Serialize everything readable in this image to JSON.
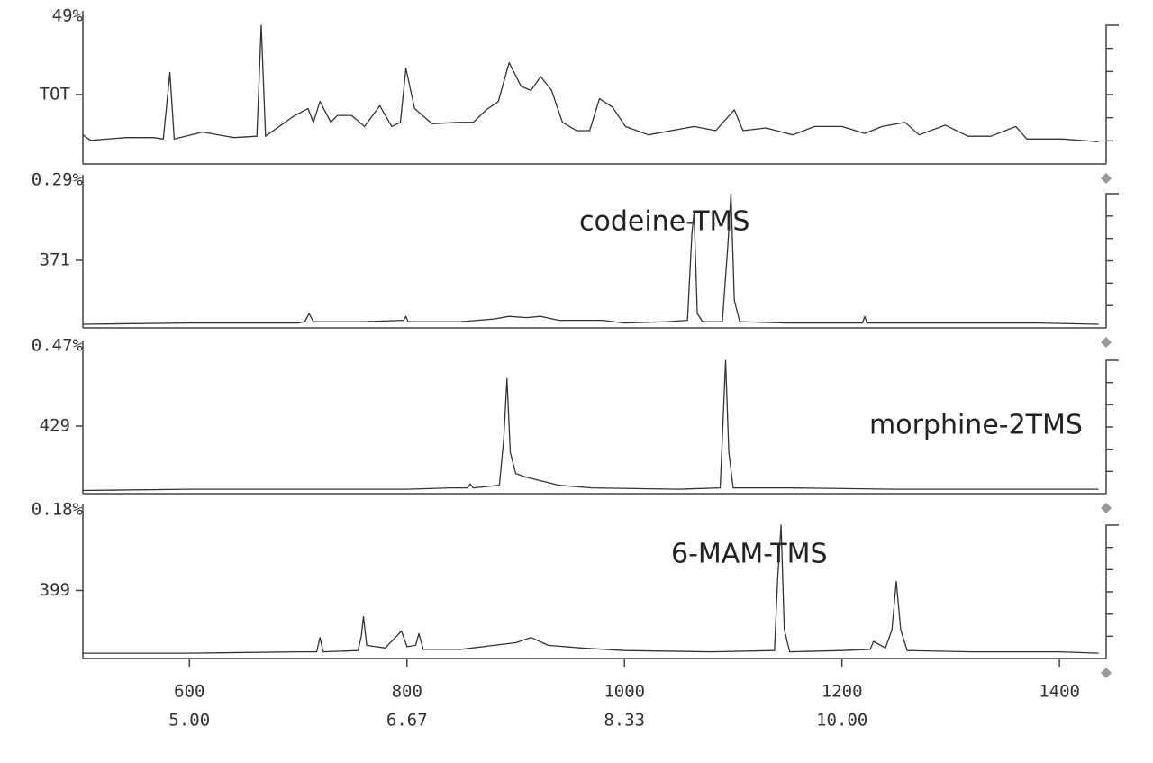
{
  "chart_data": [
    {
      "type": "line",
      "top_label": "49%",
      "y_label": "TOT",
      "color": "#333333",
      "xlim": [
        502,
        1438
      ],
      "ylim": [
        0,
        100
      ],
      "x": [
        502,
        509,
        542,
        567,
        576,
        582,
        586,
        612,
        641,
        662,
        666,
        670,
        695,
        709,
        714,
        720,
        730,
        736,
        749,
        761,
        775,
        786,
        794,
        799,
        807,
        823,
        848,
        861,
        873,
        884,
        894,
        905,
        914,
        923,
        933,
        943,
        956,
        968,
        977,
        989,
        1001,
        1022,
        1064,
        1084,
        1101,
        1109,
        1130,
        1155,
        1175,
        1200,
        1221,
        1237,
        1258,
        1271,
        1295,
        1316,
        1337,
        1360,
        1370,
        1403,
        1436
      ],
      "values": [
        21,
        17,
        19,
        19,
        18,
        66,
        18,
        23,
        19,
        20,
        100,
        20,
        34,
        40,
        30,
        45,
        30,
        35,
        35,
        27,
        42,
        27,
        30,
        69,
        40,
        29,
        30,
        30,
        39,
        45,
        73,
        56,
        53,
        63,
        53,
        30,
        24,
        24,
        47,
        41,
        27,
        21,
        27,
        24,
        39,
        24,
        26,
        21,
        27,
        27,
        22,
        27,
        30,
        21,
        28,
        20,
        20,
        27,
        18,
        18,
        16
      ]
    },
    {
      "type": "line",
      "top_label": "0.29%",
      "y_label": "371",
      "annotation": "codeine-TMS",
      "color": "#333333",
      "xlim": [
        502,
        1438
      ],
      "ylim": [
        0,
        100
      ],
      "x": [
        502,
        600,
        700,
        706,
        710,
        714,
        760,
        797,
        799,
        801,
        850,
        880,
        894,
        910,
        923,
        940,
        980,
        1000,
        1040,
        1058,
        1062,
        1064,
        1067,
        1072,
        1090,
        1095,
        1098,
        1101,
        1106,
        1150,
        1219,
        1221,
        1223,
        1300,
        1380,
        1436
      ],
      "values": [
        2,
        3,
        3,
        4,
        10,
        4,
        4,
        5,
        8,
        4,
        4,
        6,
        8,
        7,
        8,
        5,
        5,
        3,
        4,
        5,
        70,
        86,
        10,
        4,
        4,
        60,
        100,
        20,
        4,
        3,
        3,
        8,
        3,
        3,
        3,
        2
      ]
    },
    {
      "type": "line",
      "top_label": "0.47%",
      "y_label": "429",
      "annotation": "morphine-2TMS",
      "color": "#333333",
      "xlim": [
        502,
        1438
      ],
      "ylim": [
        0,
        100
      ],
      "x": [
        502,
        600,
        700,
        800,
        840,
        856,
        858,
        861,
        885,
        889,
        892,
        895,
        900,
        910,
        925,
        940,
        970,
        1050,
        1088,
        1091,
        1093,
        1096,
        1100,
        1150,
        1250,
        1350,
        1436
      ],
      "values": [
        1,
        2,
        2,
        2,
        3,
        3,
        6,
        3,
        5,
        40,
        86,
        30,
        14,
        11,
        8,
        5,
        3,
        2,
        3,
        60,
        100,
        30,
        3,
        3,
        2,
        2,
        2
      ]
    },
    {
      "type": "line",
      "top_label": "0.18%",
      "y_label": "399",
      "annotation": "6-MAM-TMS",
      "color": "#333333",
      "xlim": [
        502,
        1438
      ],
      "ylim": [
        0,
        100
      ],
      "x": [
        502,
        600,
        700,
        717,
        720,
        723,
        755,
        758,
        760,
        763,
        780,
        795,
        800,
        808,
        811,
        815,
        850,
        880,
        900,
        914,
        930,
        960,
        1000,
        1080,
        1138,
        1141,
        1144,
        1147,
        1152,
        1200,
        1226,
        1229,
        1240,
        1246,
        1250,
        1254,
        1260,
        1320,
        1400,
        1436
      ],
      "values": [
        2,
        2,
        3,
        3,
        14,
        3,
        4,
        15,
        30,
        8,
        6,
        19,
        7,
        8,
        17,
        5,
        5,
        8,
        10,
        14,
        8,
        6,
        4,
        3,
        4,
        60,
        100,
        20,
        3,
        4,
        5,
        11,
        6,
        20,
        57,
        20,
        4,
        3,
        3,
        2
      ],
      "xticks": [
        600,
        800,
        1000,
        1200,
        1400
      ],
      "time_ticks": [
        {
          "value": 5,
          "label": "5.00"
        },
        {
          "value": 6.67,
          "label": "6.67"
        },
        {
          "value": 8.33,
          "label": "8.33"
        },
        {
          "value": 10,
          "label": "10.00"
        }
      ]
    }
  ]
}
